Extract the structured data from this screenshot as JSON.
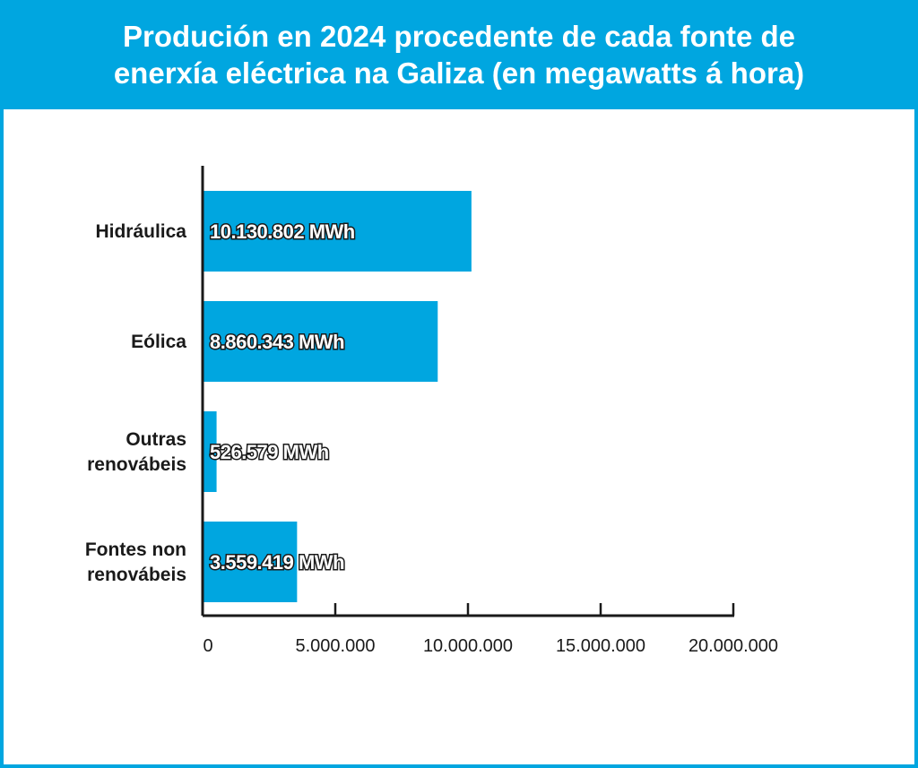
{
  "title": "Produción en 2024 procedente de cada fonte de\nenerxía eléctrica na Galiza (en megawatts á hora)",
  "colors": {
    "header": "#00a6e0",
    "bar": "#00a6e0",
    "axis": "#1a1a1a"
  },
  "chart_data": {
    "type": "bar",
    "orientation": "horizontal",
    "categories": [
      "Hidráulica",
      "Eólica",
      "Outras renovábeis",
      "Fontes non renovábeis"
    ],
    "values": [
      10130802,
      8860343,
      526579,
      3559419
    ],
    "data_labels": [
      "10.130.802 MWh",
      "8.860.343 MWh",
      "526.579 MWh",
      "3.559.419 MWh"
    ],
    "xlim": [
      0,
      20000000
    ],
    "xticks": [
      0,
      5000000,
      10000000,
      15000000,
      20000000
    ],
    "xtick_labels": [
      "0",
      "5.000.000",
      "10.000.000",
      "15.000.000",
      "20.000.000"
    ],
    "grid": false,
    "legend": "none"
  }
}
